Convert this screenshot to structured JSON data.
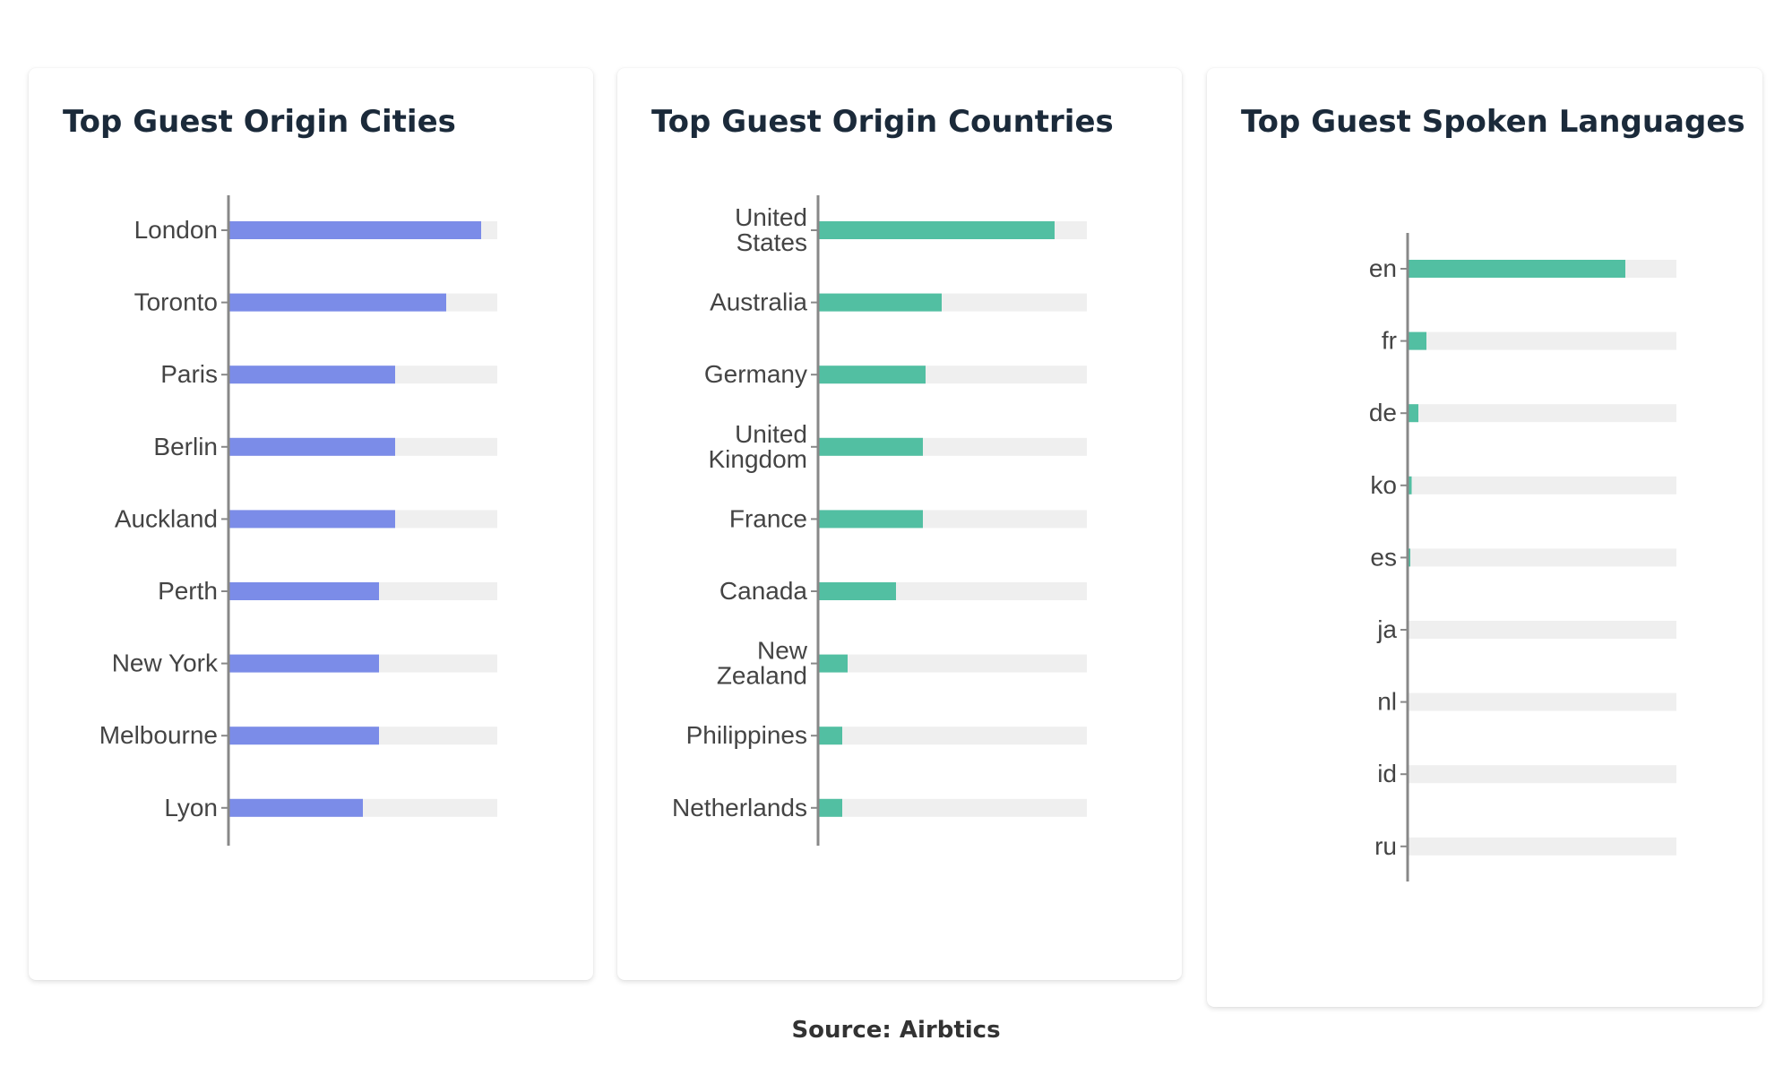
{
  "colors": {
    "cities_bar": "#7b8ce8",
    "countries_bar": "#52bfa2",
    "languages_bar": "#52bfa2",
    "track": "#efefef",
    "axis": "#888888"
  },
  "cards": [
    {
      "title": "Top Guest Origin Cities"
    },
    {
      "title": "Top Guest Origin Countries"
    },
    {
      "title": "Top Guest Spoken Languages"
    }
  ],
  "source": "Source: Airbtics",
  "chart_data": [
    {
      "type": "bar",
      "orientation": "horizontal",
      "title": "Top Guest Origin Cities",
      "categories": [
        "London",
        "Toronto",
        "Paris",
        "Berlin",
        "Auckland",
        "Perth",
        "New York",
        "Melbourne",
        "Lyon"
      ],
      "values": [
        94,
        81,
        62,
        62,
        62,
        56,
        56,
        56,
        50
      ],
      "xlim": [
        0,
        100
      ],
      "grid": false,
      "legend": "none"
    },
    {
      "type": "bar",
      "orientation": "horizontal",
      "title": "Top Guest Origin Countries",
      "categories": [
        "United States",
        "Australia",
        "Germany",
        "United Kingdom",
        "France",
        "Canada",
        "New Zealand",
        "Philippines",
        "Netherlands"
      ],
      "category_lines": [
        [
          "United",
          "States"
        ],
        [
          "Australia"
        ],
        [
          "Germany"
        ],
        [
          "United",
          "Kingdom"
        ],
        [
          "France"
        ],
        [
          "Canada"
        ],
        [
          "New",
          "Zealand"
        ],
        [
          "Philippines"
        ],
        [
          "Netherlands"
        ]
      ],
      "values": [
        88,
        46,
        40,
        39,
        39,
        29,
        11,
        9,
        9
      ],
      "xlim": [
        0,
        100
      ],
      "grid": false,
      "legend": "none"
    },
    {
      "type": "bar",
      "orientation": "horizontal",
      "title": "Top Guest Spoken Languages",
      "categories": [
        "en",
        "fr",
        "de",
        "ko",
        "es",
        "ja",
        "nl",
        "id",
        "ru"
      ],
      "values": [
        81,
        7,
        4,
        1.5,
        1,
        0.5,
        0.5,
        0.5,
        0.5
      ],
      "xlim": [
        0,
        100
      ],
      "grid": false,
      "legend": "none"
    }
  ]
}
